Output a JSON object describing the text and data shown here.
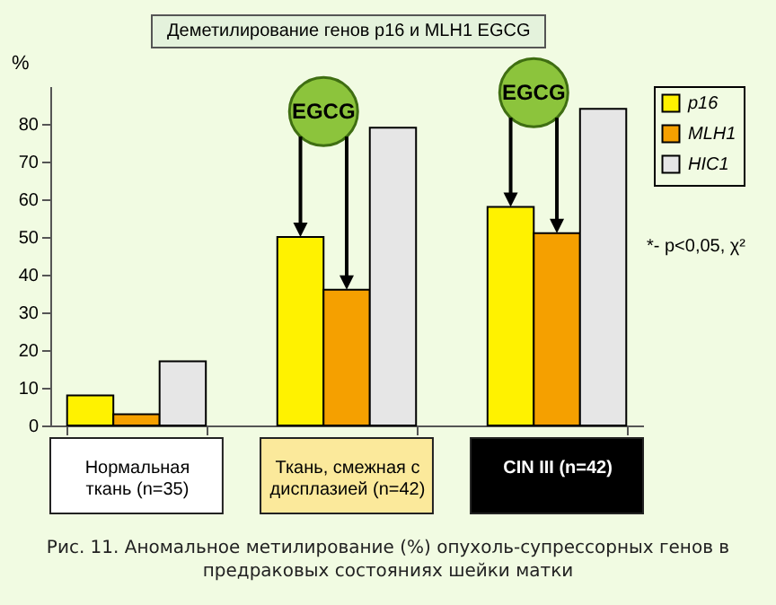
{
  "chart_data": {
    "type": "bar",
    "title": "Деметилирование генов p16 и MLH1 EGCG",
    "ylabel": "%",
    "categories": [
      "Нормальная ткань (n=35)",
      "Ткань, смежная с дисплазией (n=42)",
      "CIN III (n=42)"
    ],
    "series": [
      {
        "name": "p16",
        "color": "#fff200",
        "values": [
          8,
          50,
          58
        ]
      },
      {
        "name": "MLH1",
        "color": "#f5a000",
        "values": [
          3,
          36,
          51
        ]
      },
      {
        "name": "HIC1",
        "color": "#e6e6e6",
        "values": [
          17,
          79,
          84
        ]
      }
    ],
    "ylim": [
      0,
      90
    ],
    "yticks": [
      0,
      10,
      20,
      30,
      40,
      50,
      60,
      70,
      80
    ],
    "legend": "top right",
    "annotations": [
      "EGCG",
      "EGCG",
      "*- p<0,05, χ²",
      "Рис. 11.  Аномальное метилирование (%) опухоль-супрессорных генов в предраковых состояниях шейки матки"
    ]
  }
}
